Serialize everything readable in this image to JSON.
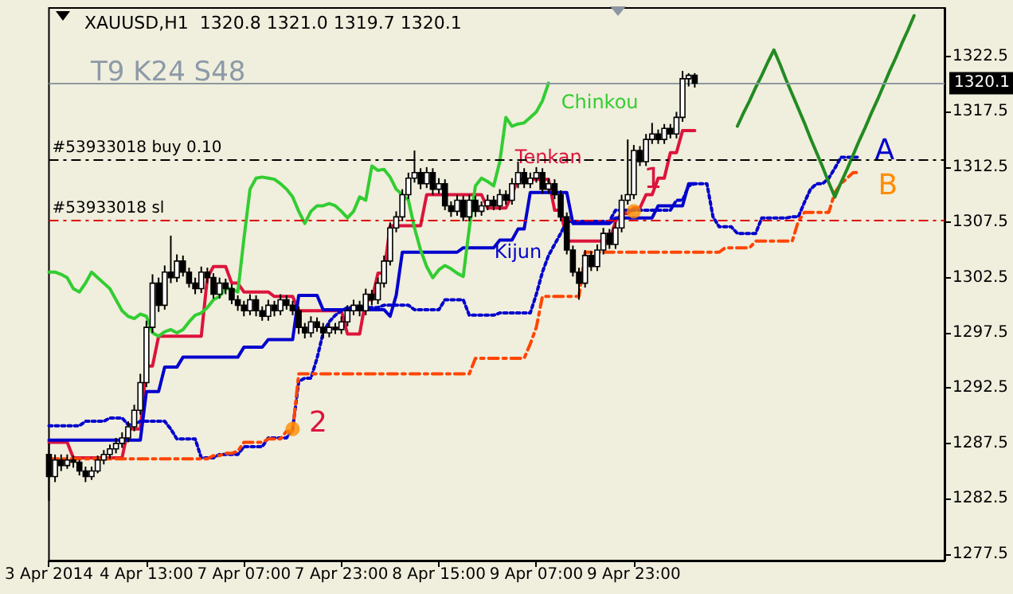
{
  "chart_data": {
    "type": "candlestick",
    "title": "XAUUSD,H1  1320.8 1321.0 1319.7 1320.1",
    "subtitle": "T9 K24 S48",
    "categories": [
      "3 Apr 2014",
      null,
      null,
      null,
      null,
      null,
      null,
      null,
      null,
      null,
      null,
      null,
      null,
      null,
      null,
      null,
      "4 Apr 13:00",
      null,
      null,
      null,
      null,
      null,
      null,
      null,
      null,
      null,
      null,
      null,
      null,
      null,
      null,
      null,
      "7 Apr 07:00",
      null,
      null,
      null,
      null,
      null,
      null,
      null,
      null,
      null,
      null,
      null,
      null,
      null,
      null,
      null,
      "7 Apr 23:00",
      null,
      null,
      null,
      null,
      null,
      null,
      null,
      null,
      null,
      null,
      null,
      null,
      null,
      null,
      null,
      "8 Apr 15:00",
      null,
      null,
      null,
      null,
      null,
      null,
      null,
      null,
      null,
      null,
      null,
      null,
      null,
      null,
      null,
      "9 Apr 07:00",
      null,
      null,
      null,
      null,
      null,
      null,
      null,
      null,
      null,
      null,
      null,
      null,
      null,
      null,
      null,
      "9 Apr 23:00",
      null,
      null,
      null,
      null,
      null,
      null,
      null,
      null,
      null,
      null,
      null,
      null,
      null,
      null,
      null,
      null,
      null,
      null,
      null,
      null,
      null,
      null,
      null,
      null,
      null,
      null,
      null,
      null,
      null,
      null,
      null,
      null,
      null,
      null,
      null,
      null,
      null,
      null,
      null,
      null,
      null,
      null,
      null,
      null,
      null,
      null,
      null,
      null,
      null,
      null,
      null
    ],
    "ohlc": [
      [
        1286.5,
        1287.5,
        1282.3,
        1284.5
      ],
      [
        1284.5,
        1286.5,
        1284.0,
        1286.0
      ],
      [
        1286.0,
        1286.5,
        1285.0,
        1285.5
      ],
      [
        1285.5,
        1286.5,
        1285.2,
        1286.0
      ],
      [
        1286.0,
        1286.4,
        1285.3,
        1285.8
      ],
      [
        1285.8,
        1286.0,
        1284.6,
        1285.0
      ],
      [
        1285.0,
        1285.4,
        1284.0,
        1284.5
      ],
      [
        1284.5,
        1285.4,
        1284.2,
        1285.0
      ],
      [
        1285.0,
        1286.4,
        1284.8,
        1286.0
      ],
      [
        1286.0,
        1286.9,
        1285.6,
        1286.5
      ],
      [
        1286.5,
        1287.4,
        1286.1,
        1287.0
      ],
      [
        1287.0,
        1288.0,
        1286.6,
        1287.5
      ],
      [
        1287.5,
        1288.5,
        1287.1,
        1288.0
      ],
      [
        1288.0,
        1289.5,
        1287.6,
        1289.0
      ],
      [
        1289.0,
        1291.0,
        1288.6,
        1290.5
      ],
      [
        1290.5,
        1293.8,
        1290.1,
        1293.0
      ],
      [
        1293.0,
        1298.6,
        1292.6,
        1298.0
      ],
      [
        1298.0,
        1302.8,
        1297.5,
        1302.0
      ],
      [
        1302.0,
        1302.5,
        1299.4,
        1300.0
      ],
      [
        1300.0,
        1303.6,
        1299.6,
        1303.0
      ],
      [
        1303.0,
        1306.3,
        1302.0,
        1302.5
      ],
      [
        1302.5,
        1304.6,
        1302.1,
        1304.0
      ],
      [
        1304.0,
        1304.5,
        1302.6,
        1303.0
      ],
      [
        1303.0,
        1303.4,
        1301.6,
        1302.0
      ],
      [
        1302.0,
        1302.5,
        1301.0,
        1301.5
      ],
      [
        1301.5,
        1303.5,
        1301.1,
        1303.0
      ],
      [
        1303.0,
        1303.4,
        1302.0,
        1302.5
      ],
      [
        1302.5,
        1302.9,
        1300.6,
        1301.0
      ],
      [
        1301.0,
        1302.5,
        1300.6,
        1302.0
      ],
      [
        1302.0,
        1302.4,
        1301.0,
        1301.5
      ],
      [
        1301.5,
        1301.9,
        1300.1,
        1300.5
      ],
      [
        1300.5,
        1300.9,
        1299.5,
        1300.0
      ],
      [
        1300.0,
        1300.4,
        1299.0,
        1299.5
      ],
      [
        1299.5,
        1301.0,
        1299.1,
        1300.5
      ],
      [
        1300.5,
        1300.9,
        1299.0,
        1299.5
      ],
      [
        1299.5,
        1299.9,
        1298.6,
        1299.0
      ],
      [
        1299.0,
        1300.5,
        1298.6,
        1300.0
      ],
      [
        1300.0,
        1300.4,
        1299.0,
        1299.5
      ],
      [
        1299.5,
        1301.0,
        1299.1,
        1300.5
      ],
      [
        1300.5,
        1300.9,
        1299.6,
        1300.0
      ],
      [
        1300.0,
        1300.4,
        1299.1,
        1299.5
      ],
      [
        1299.5,
        1299.9,
        1297.4,
        1298.0
      ],
      [
        1298.0,
        1298.4,
        1297.0,
        1297.5
      ],
      [
        1297.5,
        1299.0,
        1297.1,
        1298.5
      ],
      [
        1298.5,
        1298.9,
        1297.6,
        1298.0
      ],
      [
        1298.0,
        1298.4,
        1297.0,
        1297.5
      ],
      [
        1297.5,
        1298.4,
        1297.1,
        1298.0
      ],
      [
        1298.0,
        1298.4,
        1297.4,
        1297.8
      ],
      [
        1297.8,
        1299.0,
        1297.4,
        1298.5
      ],
      [
        1298.5,
        1300.0,
        1298.1,
        1299.5
      ],
      [
        1299.5,
        1300.5,
        1299.1,
        1300.0
      ],
      [
        1300.0,
        1300.4,
        1299.0,
        1299.5
      ],
      [
        1299.5,
        1301.5,
        1299.1,
        1301.0
      ],
      [
        1301.0,
        1301.4,
        1300.0,
        1300.5
      ],
      [
        1300.5,
        1302.5,
        1300.1,
        1302.0
      ],
      [
        1302.0,
        1304.5,
        1301.6,
        1304.0
      ],
      [
        1304.0,
        1307.5,
        1303.6,
        1307.0
      ],
      [
        1307.0,
        1308.5,
        1306.6,
        1308.0
      ],
      [
        1308.0,
        1310.5,
        1307.6,
        1310.0
      ],
      [
        1310.0,
        1312.0,
        1309.6,
        1311.5
      ],
      [
        1311.5,
        1314.0,
        1311.1,
        1312.0
      ],
      [
        1312.0,
        1312.4,
        1310.5,
        1311.0
      ],
      [
        1311.0,
        1312.5,
        1310.6,
        1312.0
      ],
      [
        1312.0,
        1312.4,
        1310.0,
        1310.5
      ],
      [
        1310.5,
        1311.5,
        1310.1,
        1311.0
      ],
      [
        1311.0,
        1311.4,
        1308.6,
        1309.0
      ],
      [
        1309.0,
        1309.4,
        1308.0,
        1308.5
      ],
      [
        1308.5,
        1310.0,
        1308.1,
        1309.5
      ],
      [
        1309.5,
        1309.9,
        1307.6,
        1308.0
      ],
      [
        1308.0,
        1310.0,
        1307.6,
        1309.5
      ],
      [
        1309.5,
        1309.9,
        1308.0,
        1308.5
      ],
      [
        1308.5,
        1309.4,
        1308.1,
        1309.0
      ],
      [
        1309.0,
        1310.0,
        1308.6,
        1309.5
      ],
      [
        1309.5,
        1309.9,
        1308.6,
        1309.0
      ],
      [
        1309.0,
        1310.5,
        1308.6,
        1310.0
      ],
      [
        1310.0,
        1310.4,
        1309.1,
        1309.5
      ],
      [
        1309.5,
        1311.5,
        1309.1,
        1311.0
      ],
      [
        1311.0,
        1313.0,
        1310.6,
        1312.0
      ],
      [
        1312.0,
        1312.4,
        1310.6,
        1311.0
      ],
      [
        1311.0,
        1312.0,
        1310.6,
        1311.5
      ],
      [
        1311.5,
        1312.5,
        1311.1,
        1312.0
      ],
      [
        1312.0,
        1312.4,
        1310.1,
        1310.5
      ],
      [
        1310.5,
        1311.5,
        1310.1,
        1311.0
      ],
      [
        1311.0,
        1311.4,
        1309.6,
        1310.0
      ],
      [
        1310.0,
        1310.4,
        1307.6,
        1308.0
      ],
      [
        1308.0,
        1308.4,
        1304.6,
        1305.0
      ],
      [
        1305.0,
        1305.4,
        1302.6,
        1303.0
      ],
      [
        1303.0,
        1303.4,
        1300.5,
        1302.0
      ],
      [
        1302.0,
        1305.0,
        1301.6,
        1304.5
      ],
      [
        1304.5,
        1304.9,
        1303.1,
        1303.5
      ],
      [
        1303.5,
        1305.5,
        1303.1,
        1305.0
      ],
      [
        1305.0,
        1307.0,
        1304.6,
        1306.5
      ],
      [
        1306.5,
        1306.9,
        1305.1,
        1305.5
      ],
      [
        1305.5,
        1307.5,
        1305.1,
        1307.0
      ],
      [
        1307.0,
        1310.0,
        1306.6,
        1309.5
      ],
      [
        1309.5,
        1315.0,
        1309.1,
        1310.0
      ],
      [
        1310.0,
        1314.5,
        1309.6,
        1314.0
      ],
      [
        1314.0,
        1314.4,
        1312.6,
        1313.0
      ],
      [
        1313.0,
        1315.5,
        1312.6,
        1315.0
      ],
      [
        1315.0,
        1316.5,
        1314.6,
        1315.5
      ],
      [
        1315.5,
        1315.9,
        1314.6,
        1315.0
      ],
      [
        1315.0,
        1316.4,
        1314.6,
        1316.0
      ],
      [
        1316.0,
        1316.4,
        1315.1,
        1315.5
      ],
      [
        1315.5,
        1317.5,
        1315.1,
        1317.0
      ],
      [
        1317.0,
        1321.2,
        1316.6,
        1320.5
      ],
      [
        1320.5,
        1321.0,
        1319.8,
        1320.8
      ],
      [
        1320.8,
        1321.0,
        1319.7,
        1320.1
      ],
      null,
      null,
      null,
      null,
      null,
      null,
      null,
      null,
      null,
      null,
      null,
      null,
      null,
      null,
      null,
      null,
      null,
      null,
      null,
      null,
      null,
      null,
      null,
      null,
      null,
      null,
      null,
      null,
      null,
      null,
      null,
      null,
      null,
      null,
      null,
      null,
      null,
      null,
      null,
      null,
      null
    ],
    "series": [
      {
        "name": "Tenkan",
        "type": "line",
        "color": "#dc143c",
        "values": [
          1287.6,
          1287.6,
          1287.6,
          1287.6,
          1286.2,
          1286.2,
          1286.2,
          1286.2,
          1286.2,
          1286.2,
          1286.2,
          1286.2,
          1286.2,
          1288.8,
          1288.8,
          1288.8,
          1294.5,
          1294.5,
          1297.2,
          1297.2,
          1297.2,
          1297.2,
          1297.2,
          1297.2,
          1297.2,
          1297.2,
          1302.5,
          1303.5,
          1303.5,
          1303.5,
          1302.0,
          1302.0,
          1301.2,
          1301.2,
          1301.2,
          1301.2,
          1301.2,
          1300.8,
          1300.8,
          1300.8,
          1300.8,
          1299.5,
          1299.5,
          1299.5,
          1299.5,
          1299.5,
          1299.5,
          1299.5,
          1299.5,
          1297.4,
          1297.4,
          1297.4,
          1300.5,
          1300.5,
          1302.9,
          1302.9,
          1307.2,
          1307.2,
          1307.2,
          1307.2,
          1307.2,
          1307.2,
          1310,
          1310,
          1310,
          1310,
          1310,
          1310,
          1310,
          1310,
          1310,
          1310,
          1308.8,
          1308.8,
          1308.8,
          1308.8,
          1310,
          1311.4,
          1311.4,
          1311.4,
          1311.4,
          1311.4,
          1311.4,
          1308.6,
          1308.6,
          1305.8,
          1305.8,
          1305.8,
          1305.8,
          1305.8,
          1305.8,
          1305.8,
          1305.8,
          1307.6,
          1308.3,
          1308.3,
          1308.8,
          1308.8,
          1310,
          1310,
          1311.5,
          1311.5,
          1313.8,
          1313.8,
          1315.8,
          1315.8,
          1315.8,
          null,
          null,
          null,
          null,
          null,
          null,
          null,
          null,
          null,
          null,
          null,
          null,
          null,
          null,
          null,
          null,
          null,
          null,
          null,
          null,
          null,
          null,
          null,
          null,
          null,
          null,
          null,
          null,
          null,
          null,
          null,
          null,
          null,
          null,
          null,
          null,
          null,
          null,
          null,
          null,
          null
        ]
      },
      {
        "name": "Kijun",
        "type": "line",
        "color": "#0000cd",
        "values": [
          1287.8,
          1287.8,
          1287.8,
          1287.8,
          1287.8,
          1287.8,
          1287.8,
          1287.8,
          1287.8,
          1287.8,
          1287.8,
          1287.8,
          1287.8,
          1287.8,
          1287.8,
          1287.8,
          1292.2,
          1292.2,
          1292.2,
          1294.4,
          1294.4,
          1294.4,
          1295.3,
          1295.3,
          1295.3,
          1295.3,
          1295.3,
          1295.3,
          1295.3,
          1295.3,
          1295.3,
          1295.3,
          1296.2,
          1296.2,
          1296.2,
          1296.2,
          1296.9,
          1296.9,
          1296.9,
          1296.9,
          1296.9,
          1300.9,
          1300.9,
          1300.9,
          1300.9,
          1299.6,
          1299.6,
          1299.6,
          1299.6,
          1299.6,
          1299.6,
          1299.6,
          1299.6,
          1299.6,
          1299.6,
          1299.6,
          1299.0,
          1300.9,
          1304.8,
          1304.8,
          1304.8,
          1304.8,
          1304.8,
          1304.8,
          1304.8,
          1304.8,
          1304.8,
          1304.8,
          1305.2,
          1305.2,
          1305.2,
          1305.2,
          1305.2,
          1305.2,
          1305.9,
          1305.9,
          1305.9,
          1306.9,
          1306.9,
          1310.2,
          1310.2,
          1310.2,
          1310.2,
          1310.2,
          1310.2,
          1310.2,
          1307.4,
          1307.4,
          1307.4,
          1307.4,
          1307.4,
          1307.4,
          1307.4,
          1307.9,
          1307.9,
          1307.9,
          1307.9,
          1307.9,
          1307.9,
          1307.9,
          1309,
          1309,
          1309,
          1309,
          1309,
          1311,
          1311,
          null,
          null,
          null,
          null,
          null,
          null,
          null,
          null,
          null,
          null,
          null,
          null,
          null,
          null,
          null,
          null,
          null,
          null,
          null,
          null,
          null,
          null,
          null,
          null,
          null,
          null,
          null,
          null,
          null,
          null,
          null,
          null,
          null,
          null,
          null,
          null,
          null,
          null,
          null,
          null,
          null
        ]
      },
      {
        "name": "Chinkou",
        "type": "line",
        "color": "#32cd32",
        "values": [
          1303,
          1303,
          1302.8,
          1302.5,
          1301.5,
          1301.2,
          1302,
          1303,
          1302.5,
          1302,
          1301.5,
          1300.5,
          1299.5,
          1299,
          1298.8,
          1299.2,
          1299,
          1297.5,
          1297.2,
          1297.6,
          1297.8,
          1297.5,
          1297.8,
          1298.5,
          1299.1,
          1299.3,
          1299.8,
          1300.5,
          1300.8,
          1301.5,
          1301.5,
          1301.2,
          1306,
          1310.5,
          1311.5,
          1311.6,
          1311.5,
          1311.4,
          1311,
          1310.5,
          1309.8,
          1308.5,
          1307.4,
          1308.5,
          1309,
          1309,
          1309.2,
          1309,
          1308.5,
          1307.9,
          1308.5,
          1309.8,
          1309.5,
          1312.6,
          1312.2,
          1312.3,
          1311.6,
          1310.5,
          1310,
          1309.5,
          1307,
          1305,
          1303.5,
          1302.5,
          1303.2,
          1303.6,
          1303.3,
          1302.9,
          1302.6,
          1307,
          1310.8,
          1311.5,
          1311.2,
          1310.8,
          1313,
          1317,
          1316.2,
          1316.4,
          1316.5,
          1317,
          1317.5,
          1318.5,
          1320.1,
          null,
          null,
          null,
          null,
          null,
          null,
          null,
          null,
          null,
          null,
          null,
          null,
          null,
          null,
          null,
          null,
          null,
          null,
          null,
          null,
          null,
          null,
          null,
          null,
          null,
          null,
          null,
          null,
          null,
          null,
          null,
          null,
          null,
          null,
          null,
          null,
          null,
          null,
          null,
          null,
          null,
          null,
          null,
          null,
          null,
          null,
          null,
          null,
          null,
          null,
          null,
          null,
          null,
          null,
          null,
          null,
          null,
          null,
          null,
          null,
          null,
          null,
          null,
          null,
          null
        ]
      },
      {
        "type": "line",
        "color": "#0000cd",
        "line_style": "dotted",
        "values": [
          1289.1,
          1289.1,
          1289.1,
          1289.1,
          1289.1,
          1289.1,
          1289.5,
          1289.5,
          1289.5,
          1289.5,
          1289.8,
          1289.8,
          1289.8,
          1289.2,
          1289.2,
          1289.5,
          1289.5,
          1289.5,
          1289.5,
          1289.5,
          1288.8,
          1287.9,
          1287.9,
          1287.9,
          1287.9,
          1286.2,
          1286.2,
          1286.2,
          1286.5,
          1286.5,
          1286.5,
          1286.5,
          1287.2,
          1287.2,
          1287.2,
          1287.2,
          1288,
          1288,
          1288,
          1288,
          1288.8,
          1293.1,
          1293.4,
          1293.4,
          1295.2,
          1297.5,
          1298.5,
          1299.1,
          1299.5,
          1299.8,
          1299.8,
          1299.8,
          1299.8,
          1299.8,
          1299.8,
          1300,
          1300,
          1300,
          1300,
          1300,
          1299.6,
          1299.6,
          1299.6,
          1299.6,
          1299.6,
          1300.5,
          1300.5,
          1300.5,
          1300.5,
          1299.1,
          1299.1,
          1299.1,
          1299.1,
          1299.1,
          1299.3,
          1299.3,
          1299.3,
          1299.3,
          1299.3,
          1299.3,
          1301,
          1303,
          1304.5,
          1305.5,
          1306.5,
          1307.6,
          1307.6,
          1307.6,
          1307.6,
          1307.6,
          1307.6,
          1307.6,
          1307.6,
          1308.6,
          1308.6,
          1308.6,
          1308.6,
          1308.6,
          1308.6,
          1308.6,
          1308.6,
          1308.6,
          1308.6,
          1309.5,
          1309.5,
          1310.8,
          1311,
          1311,
          1311,
          1308,
          1307.1,
          1307.1,
          1307.1,
          1306.5,
          1306.5,
          1306.5,
          1306.5,
          1307.9,
          1307.9,
          1307.9,
          1307.9,
          1307.9,
          1308,
          1308,
          1309.3,
          1310.5,
          1311,
          1311,
          1311.5,
          1312.4,
          1313.4,
          1313.4,
          1313.4,
          1313.4,
          null,
          null,
          null,
          null,
          null,
          null,
          null,
          null,
          null,
          null,
          null,
          null,
          null,
          null
        ]
      },
      {
        "type": "line",
        "color": "#ff4500",
        "line_style": "dashed",
        "values": [
          1286.1,
          1286.1,
          1286.1,
          1286.1,
          1286.1,
          1286.1,
          1286.1,
          1286.1,
          1286.1,
          1286.1,
          1286.1,
          1286.1,
          1286.1,
          1286.1,
          1286.1,
          1286.1,
          1286.1,
          1286.1,
          1286.1,
          1286.1,
          1286.1,
          1286.1,
          1286.1,
          1286.1,
          1286.1,
          1286.1,
          1286.1,
          1286.4,
          1286.4,
          1286.6,
          1286.6,
          1286.8,
          1287.6,
          1287.6,
          1287.6,
          1287.6,
          1287.9,
          1287.9,
          1287.9,
          1288.6,
          1288.6,
          1293.8,
          1293.8,
          1293.8,
          1293.8,
          1293.8,
          1293.8,
          1293.8,
          1293.8,
          1293.8,
          1293.8,
          1293.8,
          1293.8,
          1293.8,
          1293.8,
          1293.8,
          1293.8,
          1293.8,
          1293.8,
          1293.8,
          1293.8,
          1293.8,
          1293.8,
          1293.8,
          1293.8,
          1293.8,
          1293.8,
          1293.8,
          1293.8,
          1293.8,
          1295.2,
          1295.2,
          1295.2,
          1295.2,
          1295.2,
          1295.2,
          1295.2,
          1295.2,
          1295.2,
          1296.5,
          1298,
          1300.8,
          1300.8,
          1300.8,
          1300.8,
          1300.8,
          1300.8,
          1300.8,
          1304.8,
          1304.8,
          1304.8,
          1304.8,
          1304.8,
          1304.8,
          1304.8,
          1304.8,
          1304.8,
          1304.8,
          1304.8,
          1304.8,
          1304.8,
          1304.8,
          1304.8,
          1304.8,
          1304.8,
          1304.8,
          1304.8,
          1304.8,
          1304.8,
          1304.8,
          1304.8,
          1305.2,
          1305.2,
          1305.2,
          1305.2,
          1305.2,
          1305.8,
          1305.8,
          1305.8,
          1305.8,
          1305.8,
          1305.8,
          1305.8,
          1307.6,
          1308.4,
          1308.4,
          1308.4,
          1308.4,
          1308.4,
          1310.2,
          1311,
          1311.5,
          1312,
          1312,
          null,
          null,
          null,
          null,
          null,
          null,
          null,
          null,
          null,
          null,
          null,
          null,
          null,
          null
        ]
      },
      {
        "type": "line",
        "color": "#228b22",
        "values": [
          null,
          null,
          null,
          null,
          null,
          null,
          null,
          null,
          null,
          null,
          null,
          null,
          null,
          null,
          null,
          null,
          null,
          null,
          null,
          null,
          null,
          null,
          null,
          null,
          null,
          null,
          null,
          null,
          null,
          null,
          null,
          null,
          null,
          null,
          null,
          null,
          null,
          null,
          null,
          null,
          null,
          null,
          null,
          null,
          null,
          null,
          null,
          null,
          null,
          null,
          null,
          null,
          null,
          null,
          null,
          null,
          null,
          null,
          null,
          null,
          null,
          null,
          null,
          null,
          null,
          null,
          null,
          null,
          null,
          null,
          null,
          null,
          null,
          null,
          null,
          null,
          null,
          null,
          null,
          null,
          null,
          null,
          null,
          null,
          null,
          null,
          null,
          null,
          null,
          null,
          null,
          null,
          null,
          null,
          null,
          null,
          null,
          null,
          null,
          null,
          null,
          null,
          null,
          null,
          null,
          null,
          null,
          null,
          null,
          null,
          null,
          null,
          null,
          1316.2,
          1317.4,
          1318.5,
          1319.7,
          1320.8,
          1322.0,
          1323.1,
          1321.8,
          1320.4,
          1319.1,
          1317.8,
          1316.5,
          1315.1,
          1313.8,
          1312.5,
          1311.1,
          1309.8,
          1311.1,
          1312.3,
          1313.6,
          1314.9,
          1316.1,
          1317.4,
          1318.6,
          1319.9,
          1321.2,
          1322.4,
          1323.7,
          1324.9,
          1326.2,
          null,
          null,
          null,
          null,
          null
        ]
      },
      {
        "type": "scatter",
        "color": "#ff8c00",
        "marker": "circle",
        "values": [
          null,
          null,
          null,
          null,
          null,
          null,
          null,
          null,
          null,
          null,
          null,
          null,
          null,
          null,
          null,
          null,
          null,
          null,
          null,
          null,
          null,
          null,
          null,
          null,
          null,
          null,
          null,
          null,
          null,
          null,
          null,
          null,
          null,
          null,
          null,
          null,
          null,
          null,
          null,
          null,
          1288.8,
          null,
          null,
          null,
          null,
          null,
          null,
          null,
          null,
          null,
          null,
          null,
          null,
          null,
          null,
          null,
          null,
          null,
          null,
          null,
          null,
          null,
          null,
          null,
          null,
          null,
          null,
          null,
          null,
          null,
          null,
          null,
          null,
          null,
          null,
          null,
          null,
          null,
          null,
          null,
          null,
          null,
          null,
          null,
          null,
          null,
          null,
          null,
          null,
          null,
          null,
          null,
          null,
          null,
          null,
          null,
          1308.5,
          null,
          null,
          null,
          null,
          null,
          null,
          null,
          null,
          null,
          null,
          null,
          null,
          null,
          null,
          null,
          null,
          null,
          null,
          null,
          null,
          null,
          null,
          null,
          null,
          null,
          null,
          null,
          null,
          null,
          null,
          null,
          null,
          null,
          null,
          null,
          null,
          null,
          null,
          null,
          null,
          null,
          null,
          null,
          null,
          null,
          null,
          null,
          null,
          null,
          null,
          null
        ]
      }
    ],
    "annotations": [
      "2",
      "1",
      "A",
      "B"
    ],
    "ref_lines": [
      {
        "axis": "y",
        "value": 1313.2,
        "label": "#53933018 buy 0.10",
        "color": "#000000",
        "line_style": "dashed"
      },
      {
        "axis": "y",
        "value": 1307.7,
        "label": "#53933018 sl",
        "color": "#dd0000",
        "line_style": "dashed"
      },
      {
        "axis": "y",
        "value": 1320.1,
        "label": "1320.1",
        "color": "#8c9aa0",
        "line_style": "solid"
      }
    ],
    "ylim": [
      1276.9,
      1326.9
    ],
    "yticks": [
      1277.5,
      1282.5,
      1287.5,
      1292.5,
      1297.5,
      1302.5,
      1307.5,
      1312.5,
      1317.5,
      1322.5
    ],
    "grid": false,
    "legend": false
  }
}
